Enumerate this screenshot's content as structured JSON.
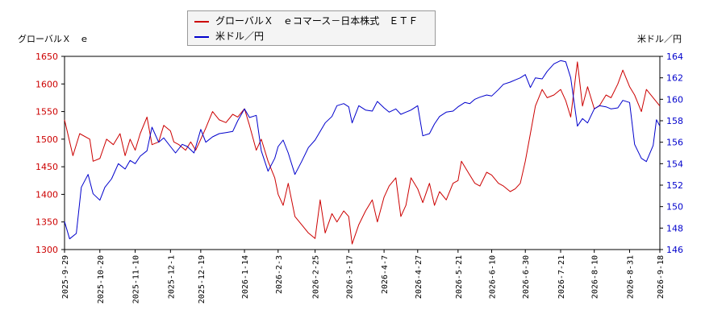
{
  "chart_data": {
    "type": "line",
    "left_axis_label": "グローバルＸ　ｅ",
    "right_axis_label": "米ドル／円",
    "legend_placement": "top-center",
    "grid": false,
    "x_tick_labels": [
      "2025-9-29",
      "2025-10-20",
      "2025-11-10",
      "2025-12-1",
      "2025-12-19",
      "2026-1-14",
      "2026-2-3",
      "2026-2-25",
      "2026-3-17",
      "2026-4-7",
      "2026-4-27",
      "2026-5-21",
      "2026-6-10",
      "2026-6-30",
      "2026-7-21",
      "2026-8-10",
      "2026-8-31",
      "2026-9-18"
    ],
    "y_left": {
      "min": 1300,
      "max": 1650,
      "ticks": [
        1300,
        1350,
        1400,
        1450,
        1500,
        1550,
        1600,
        1650
      ]
    },
    "y_right": {
      "min": 146,
      "max": 164,
      "ticks": [
        146,
        148,
        150,
        152,
        154,
        156,
        158,
        160,
        162,
        164
      ]
    },
    "series": [
      {
        "name": "グローバルＸ　ｅコマース－日本株式　ＥＴＦ",
        "axis": "left",
        "color": "#cc0000",
        "points": [
          [
            "2025-9-29",
            1535
          ],
          [
            "2025-10-4",
            1470
          ],
          [
            "2025-10-8",
            1510
          ],
          [
            "2025-10-14",
            1500
          ],
          [
            "2025-10-16",
            1460
          ],
          [
            "2025-10-20",
            1465
          ],
          [
            "2025-10-24",
            1500
          ],
          [
            "2025-10-28",
            1490
          ],
          [
            "2025-11-1",
            1510
          ],
          [
            "2025-11-4",
            1470
          ],
          [
            "2025-11-7",
            1500
          ],
          [
            "2025-11-10",
            1480
          ],
          [
            "2025-11-13",
            1510
          ],
          [
            "2025-11-17",
            1540
          ],
          [
            "2025-11-20",
            1490
          ],
          [
            "2025-11-24",
            1495
          ],
          [
            "2025-11-27",
            1525
          ],
          [
            "2025-12-1",
            1515
          ],
          [
            "2025-12-3",
            1495
          ],
          [
            "2025-12-6",
            1490
          ],
          [
            "2025-12-10",
            1480
          ],
          [
            "2025-12-13",
            1495
          ],
          [
            "2025-12-16",
            1480
          ],
          [
            "2025-12-19",
            1500
          ],
          [
            "2025-12-22",
            1520
          ],
          [
            "2025-12-26",
            1550
          ],
          [
            "2025-12-30",
            1535
          ],
          [
            "2026-1-3",
            1530
          ],
          [
            "2026-1-7",
            1545
          ],
          [
            "2026-1-10",
            1540
          ],
          [
            "2026-1-14",
            1555
          ],
          [
            "2026-1-17",
            1525
          ],
          [
            "2026-1-21",
            1480
          ],
          [
            "2026-1-24",
            1500
          ],
          [
            "2026-1-28",
            1460
          ],
          [
            "2026-2-1",
            1430
          ],
          [
            "2026-2-3",
            1400
          ],
          [
            "2026-2-6",
            1380
          ],
          [
            "2026-2-9",
            1420
          ],
          [
            "2026-2-13",
            1360
          ],
          [
            "2026-2-17",
            1345
          ],
          [
            "2026-2-21",
            1330
          ],
          [
            "2026-2-25",
            1320
          ],
          [
            "2026-2-28",
            1390
          ],
          [
            "2026-3-3",
            1330
          ],
          [
            "2026-3-7",
            1365
          ],
          [
            "2026-3-10",
            1350
          ],
          [
            "2026-3-14",
            1370
          ],
          [
            "2026-3-17",
            1360
          ],
          [
            "2026-3-19",
            1310
          ],
          [
            "2026-3-23",
            1345
          ],
          [
            "2026-3-27",
            1370
          ],
          [
            "2026-3-31",
            1390
          ],
          [
            "2026-4-3",
            1350
          ],
          [
            "2026-4-7",
            1395
          ],
          [
            "2026-4-10",
            1415
          ],
          [
            "2026-4-14",
            1430
          ],
          [
            "2026-4-17",
            1360
          ],
          [
            "2026-4-20",
            1380
          ],
          [
            "2026-4-23",
            1430
          ],
          [
            "2026-4-27",
            1410
          ],
          [
            "2026-4-30",
            1385
          ],
          [
            "2026-5-4",
            1420
          ],
          [
            "2026-5-7",
            1380
          ],
          [
            "2026-5-10",
            1405
          ],
          [
            "2026-5-14",
            1390
          ],
          [
            "2026-5-18",
            1420
          ],
          [
            "2026-5-21",
            1425
          ],
          [
            "2026-5-23",
            1460
          ],
          [
            "2026-5-27",
            1440
          ],
          [
            "2026-5-31",
            1420
          ],
          [
            "2026-6-3",
            1415
          ],
          [
            "2026-6-7",
            1440
          ],
          [
            "2026-6-10",
            1435
          ],
          [
            "2026-6-14",
            1420
          ],
          [
            "2026-6-17",
            1415
          ],
          [
            "2026-6-21",
            1405
          ],
          [
            "2026-6-24",
            1410
          ],
          [
            "2026-6-27",
            1420
          ],
          [
            "2026-6-30",
            1460
          ],
          [
            "2026-7-3",
            1510
          ],
          [
            "2026-7-6",
            1560
          ],
          [
            "2026-7-10",
            1590
          ],
          [
            "2026-7-13",
            1575
          ],
          [
            "2026-7-17",
            1580
          ],
          [
            "2026-7-21",
            1590
          ],
          [
            "2026-7-24",
            1570
          ],
          [
            "2026-7-27",
            1540
          ],
          [
            "2026-7-31",
            1640
          ],
          [
            "2026-8-3",
            1560
          ],
          [
            "2026-8-6",
            1595
          ],
          [
            "2026-8-10",
            1555
          ],
          [
            "2026-8-13",
            1560
          ],
          [
            "2026-8-17",
            1580
          ],
          [
            "2026-8-20",
            1575
          ],
          [
            "2026-8-24",
            1600
          ],
          [
            "2026-8-27",
            1625
          ],
          [
            "2026-8-31",
            1595
          ],
          [
            "2026-9-3",
            1580
          ],
          [
            "2026-9-7",
            1550
          ],
          [
            "2026-9-10",
            1590
          ],
          [
            "2026-9-14",
            1575
          ],
          [
            "2026-9-18",
            1560
          ]
        ]
      },
      {
        "name": "米ドル／円",
        "axis": "right",
        "color": "#0000cc",
        "points": [
          [
            "2025-9-29",
            148.6
          ],
          [
            "2025-10-2",
            147.0
          ],
          [
            "2025-10-6",
            147.5
          ],
          [
            "2025-10-9",
            151.8
          ],
          [
            "2025-10-13",
            153.0
          ],
          [
            "2025-10-16",
            151.2
          ],
          [
            "2025-10-20",
            150.6
          ],
          [
            "2025-10-23",
            151.8
          ],
          [
            "2025-10-27",
            152.6
          ],
          [
            "2025-10-31",
            154.0
          ],
          [
            "2025-11-4",
            153.5
          ],
          [
            "2025-11-7",
            154.3
          ],
          [
            "2025-11-10",
            154.0
          ],
          [
            "2025-11-13",
            154.7
          ],
          [
            "2025-11-17",
            155.2
          ],
          [
            "2025-11-20",
            157.4
          ],
          [
            "2025-11-24",
            156.0
          ],
          [
            "2025-11-27",
            156.4
          ],
          [
            "2025-12-1",
            155.6
          ],
          [
            "2025-12-4",
            155.0
          ],
          [
            "2025-12-8",
            155.8
          ],
          [
            "2025-12-11",
            155.6
          ],
          [
            "2025-12-15",
            155.0
          ],
          [
            "2025-12-19",
            157.2
          ],
          [
            "2025-12-22",
            156.0
          ],
          [
            "2025-12-26",
            156.5
          ],
          [
            "2025-12-30",
            156.8
          ],
          [
            "2026-1-3",
            156.9
          ],
          [
            "2026-1-7",
            157.0
          ],
          [
            "2026-1-10",
            158.0
          ],
          [
            "2026-1-14",
            159.1
          ],
          [
            "2026-1-17",
            158.3
          ],
          [
            "2026-1-21",
            158.5
          ],
          [
            "2026-1-24",
            155.2
          ],
          [
            "2026-1-28",
            153.3
          ],
          [
            "2026-2-1",
            154.5
          ],
          [
            "2026-2-3",
            155.6
          ],
          [
            "2026-2-6",
            156.2
          ],
          [
            "2026-2-9",
            155.0
          ],
          [
            "2026-2-13",
            153.0
          ],
          [
            "2026-2-17",
            154.2
          ],
          [
            "2026-2-21",
            155.5
          ],
          [
            "2026-2-25",
            156.2
          ],
          [
            "2026-2-28",
            157.0
          ],
          [
            "2026-3-3",
            157.8
          ],
          [
            "2026-3-7",
            158.4
          ],
          [
            "2026-3-10",
            159.4
          ],
          [
            "2026-3-14",
            159.6
          ],
          [
            "2026-3-17",
            159.3
          ],
          [
            "2026-3-19",
            157.8
          ],
          [
            "2026-3-23",
            159.4
          ],
          [
            "2026-3-27",
            159.0
          ],
          [
            "2026-3-31",
            158.9
          ],
          [
            "2026-4-3",
            159.8
          ],
          [
            "2026-4-7",
            159.2
          ],
          [
            "2026-4-10",
            158.8
          ],
          [
            "2026-4-14",
            159.1
          ],
          [
            "2026-4-17",
            158.6
          ],
          [
            "2026-4-20",
            158.8
          ],
          [
            "2026-4-23",
            159.0
          ],
          [
            "2026-4-27",
            159.4
          ],
          [
            "2026-4-30",
            156.6
          ],
          [
            "2026-5-4",
            156.8
          ],
          [
            "2026-5-7",
            157.7
          ],
          [
            "2026-5-10",
            158.4
          ],
          [
            "2026-5-14",
            158.8
          ],
          [
            "2026-5-18",
            158.9
          ],
          [
            "2026-5-21",
            159.3
          ],
          [
            "2026-5-25",
            159.7
          ],
          [
            "2026-5-28",
            159.6
          ],
          [
            "2026-5-31",
            160.0
          ],
          [
            "2026-6-3",
            160.2
          ],
          [
            "2026-6-7",
            160.4
          ],
          [
            "2026-6-10",
            160.3
          ],
          [
            "2026-6-14",
            160.9
          ],
          [
            "2026-6-17",
            161.4
          ],
          [
            "2026-6-21",
            161.6
          ],
          [
            "2026-6-24",
            161.8
          ],
          [
            "2026-6-27",
            162.0
          ],
          [
            "2026-6-30",
            162.3
          ],
          [
            "2026-7-3",
            161.1
          ],
          [
            "2026-7-6",
            162.0
          ],
          [
            "2026-7-10",
            161.9
          ],
          [
            "2026-7-13",
            162.6
          ],
          [
            "2026-7-17",
            163.3
          ],
          [
            "2026-7-21",
            163.6
          ],
          [
            "2026-7-24",
            163.5
          ],
          [
            "2026-7-27",
            162.0
          ],
          [
            "2026-7-31",
            157.5
          ],
          [
            "2026-8-3",
            158.2
          ],
          [
            "2026-8-6",
            157.8
          ],
          [
            "2026-8-10",
            159.1
          ],
          [
            "2026-8-13",
            159.4
          ],
          [
            "2026-8-17",
            159.3
          ],
          [
            "2026-8-20",
            159.1
          ],
          [
            "2026-8-24",
            159.2
          ],
          [
            "2026-8-27",
            159.9
          ],
          [
            "2026-8-31",
            159.7
          ],
          [
            "2026-9-3",
            155.8
          ],
          [
            "2026-9-7",
            154.5
          ],
          [
            "2026-9-10",
            154.2
          ],
          [
            "2026-9-14",
            155.7
          ],
          [
            "2026-9-16",
            158.1
          ],
          [
            "2026-9-18",
            157.5
          ]
        ]
      }
    ]
  }
}
